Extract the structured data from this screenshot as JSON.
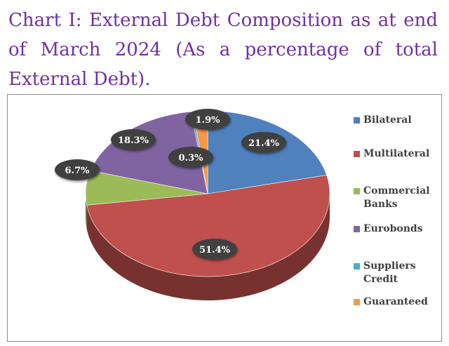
{
  "title": "Chart I: External Debt Composition as at end of March 2024 (As a percentage of total External Debt).",
  "chart_data": {
    "type": "pie",
    "title": "Chart I: External Debt Composition as at end of March 2024 (As a percentage of total External Debt).",
    "series": [
      {
        "name": "Bilateral",
        "value": 21.4,
        "label": "21.4%",
        "color": "#4f81bd"
      },
      {
        "name": "Multilateral",
        "value": 51.4,
        "label": "51.4%",
        "color": "#c0504d"
      },
      {
        "name": "Commercial Banks",
        "value": 6.7,
        "label": "6.7%",
        "color": "#9bbb59"
      },
      {
        "name": "Eurobonds",
        "value": 18.3,
        "label": "18.3%",
        "color": "#8064a2"
      },
      {
        "name": "Suppliers Credit",
        "value": 0.3,
        "label": "0.3%",
        "color": "#4bacc6"
      },
      {
        "name": "Guaranteed",
        "value": 1.9,
        "label": "1.9%",
        "color": "#f79646"
      }
    ],
    "legend": "right",
    "style": "3d-pie"
  }
}
